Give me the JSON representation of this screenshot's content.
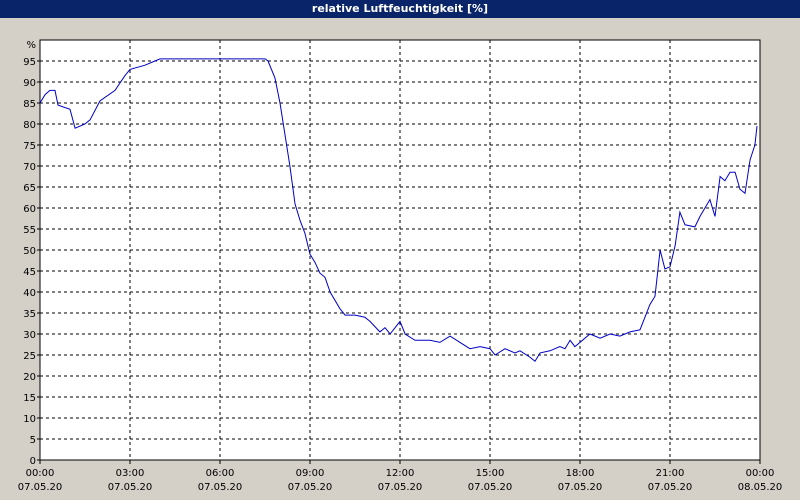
{
  "chart_data": {
    "type": "line",
    "title": "relative Luftfeuchtigkeit [%]",
    "y_label": "%",
    "x": [
      0,
      0.17,
      0.33,
      0.5,
      0.6,
      1.0,
      1.17,
      1.5,
      1.67,
      2.0,
      2.5,
      2.83,
      3.0,
      3.5,
      3.83,
      4.0,
      5.0,
      6.0,
      7.0,
      7.5,
      7.6,
      7.83,
      8.0,
      8.33,
      8.5,
      8.67,
      8.83,
      9.0,
      9.17,
      9.33,
      9.5,
      9.67,
      10.0,
      10.17,
      10.5,
      10.83,
      11.0,
      11.33,
      11.5,
      11.67,
      12.0,
      12.17,
      12.5,
      13.0,
      13.33,
      13.67,
      14.0,
      14.33,
      14.67,
      15.0,
      15.17,
      15.5,
      15.83,
      16.0,
      16.33,
      16.5,
      16.67,
      17.0,
      17.33,
      17.5,
      17.67,
      17.83,
      18.0,
      18.33,
      18.67,
      19.0,
      19.33,
      19.67,
      20.0,
      20.33,
      20.5,
      20.67,
      20.83,
      21.0,
      21.17,
      21.33,
      21.5,
      21.83,
      22.0,
      22.33,
      22.5,
      22.67,
      22.83,
      23.0,
      23.17,
      23.33,
      23.5,
      23.67,
      23.83,
      23.9
    ],
    "series": [
      {
        "name": "relative Luftfeuchtigkeit",
        "color": "#0000c8",
        "values": [
          85,
          87,
          88,
          88,
          84.5,
          83.5,
          79,
          80,
          81,
          85.5,
          88,
          91.5,
          93,
          94,
          95,
          95.5,
          95.5,
          95.5,
          95.5,
          95.5,
          95,
          91,
          85,
          70,
          61,
          57,
          54,
          49,
          47,
          44.5,
          43.5,
          40,
          36,
          34.5,
          34.5,
          34,
          33,
          30.5,
          31.5,
          30,
          33,
          30,
          28.5,
          28.5,
          28,
          29.5,
          28,
          26.5,
          27,
          26.5,
          25,
          26.5,
          25.5,
          26,
          24.5,
          23.5,
          25.5,
          26,
          27,
          26.5,
          28.5,
          27,
          28,
          30,
          29,
          30,
          29.5,
          30.5,
          31,
          37,
          39,
          50,
          45.5,
          46,
          51,
          59,
          56,
          55.5,
          58,
          62,
          58,
          67.5,
          66.5,
          68.5,
          68.5,
          64.5,
          63.5,
          71.5,
          75,
          79.5
        ]
      }
    ],
    "xlim": [
      0,
      24
    ],
    "ylim": [
      0,
      100
    ],
    "xticks": [
      {
        "value": 0,
        "label": "00:00\n07.05.20"
      },
      {
        "value": 3,
        "label": "03:00\n07.05.20"
      },
      {
        "value": 6,
        "label": "06:00\n07.05.20"
      },
      {
        "value": 9,
        "label": "09:00\n07.05.20"
      },
      {
        "value": 12,
        "label": "12:00\n07.05.20"
      },
      {
        "value": 15,
        "label": "15:00\n07.05.20"
      },
      {
        "value": 18,
        "label": "18:00\n07.05.20"
      },
      {
        "value": 21,
        "label": "21:00\n07.05.20"
      },
      {
        "value": 24,
        "label": "00:00\n08.05.20"
      }
    ],
    "yticks": [
      0,
      5,
      10,
      15,
      20,
      25,
      30,
      35,
      40,
      45,
      50,
      55,
      60,
      65,
      70,
      75,
      80,
      85,
      90,
      95
    ],
    "grid": true
  }
}
